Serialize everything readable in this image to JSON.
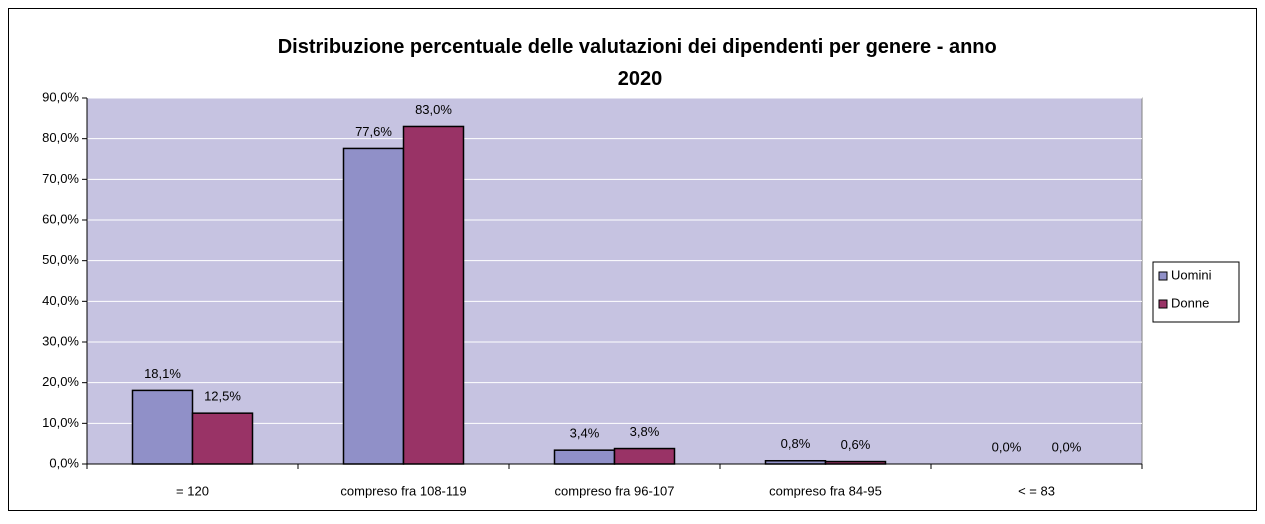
{
  "chart_data": {
    "type": "bar",
    "title": "Distribuzione percentuale delle valutazioni dei dipendenti per genere - anno 2020",
    "categories": [
      "= 120",
      "compreso fra 108-119",
      "compreso fra 96-107",
      "compreso fra 84-95",
      "< = 83"
    ],
    "series": [
      {
        "name": "Uomini",
        "color": "#9090c8",
        "values": [
          18.1,
          77.6,
          3.4,
          0.8,
          0.0
        ],
        "value_labels": [
          "18,1%",
          "77,6%",
          "3,4%",
          "0,8%",
          "0,0%"
        ]
      },
      {
        "name": "Donne",
        "color": "#993366",
        "values": [
          12.5,
          83.0,
          3.8,
          0.6,
          0.0
        ],
        "value_labels": [
          "12,5%",
          "83,0%",
          "3,8%",
          "0,6%",
          "0,0%"
        ]
      }
    ],
    "ylim": [
      0,
      90
    ],
    "yticks": [
      {
        "value": 0,
        "label": "0,0%"
      },
      {
        "value": 10,
        "label": "10,0%"
      },
      {
        "value": 20,
        "label": "20,0%"
      },
      {
        "value": 30,
        "label": "30,0%"
      },
      {
        "value": 40,
        "label": "40,0%"
      },
      {
        "value": 50,
        "label": "50,0%"
      },
      {
        "value": 60,
        "label": "60,0%"
      },
      {
        "value": 70,
        "label": "70,0%"
      },
      {
        "value": 80,
        "label": "80,0%"
      },
      {
        "value": 90,
        "label": "90,0%"
      }
    ],
    "grid": true,
    "legend": "right"
  }
}
